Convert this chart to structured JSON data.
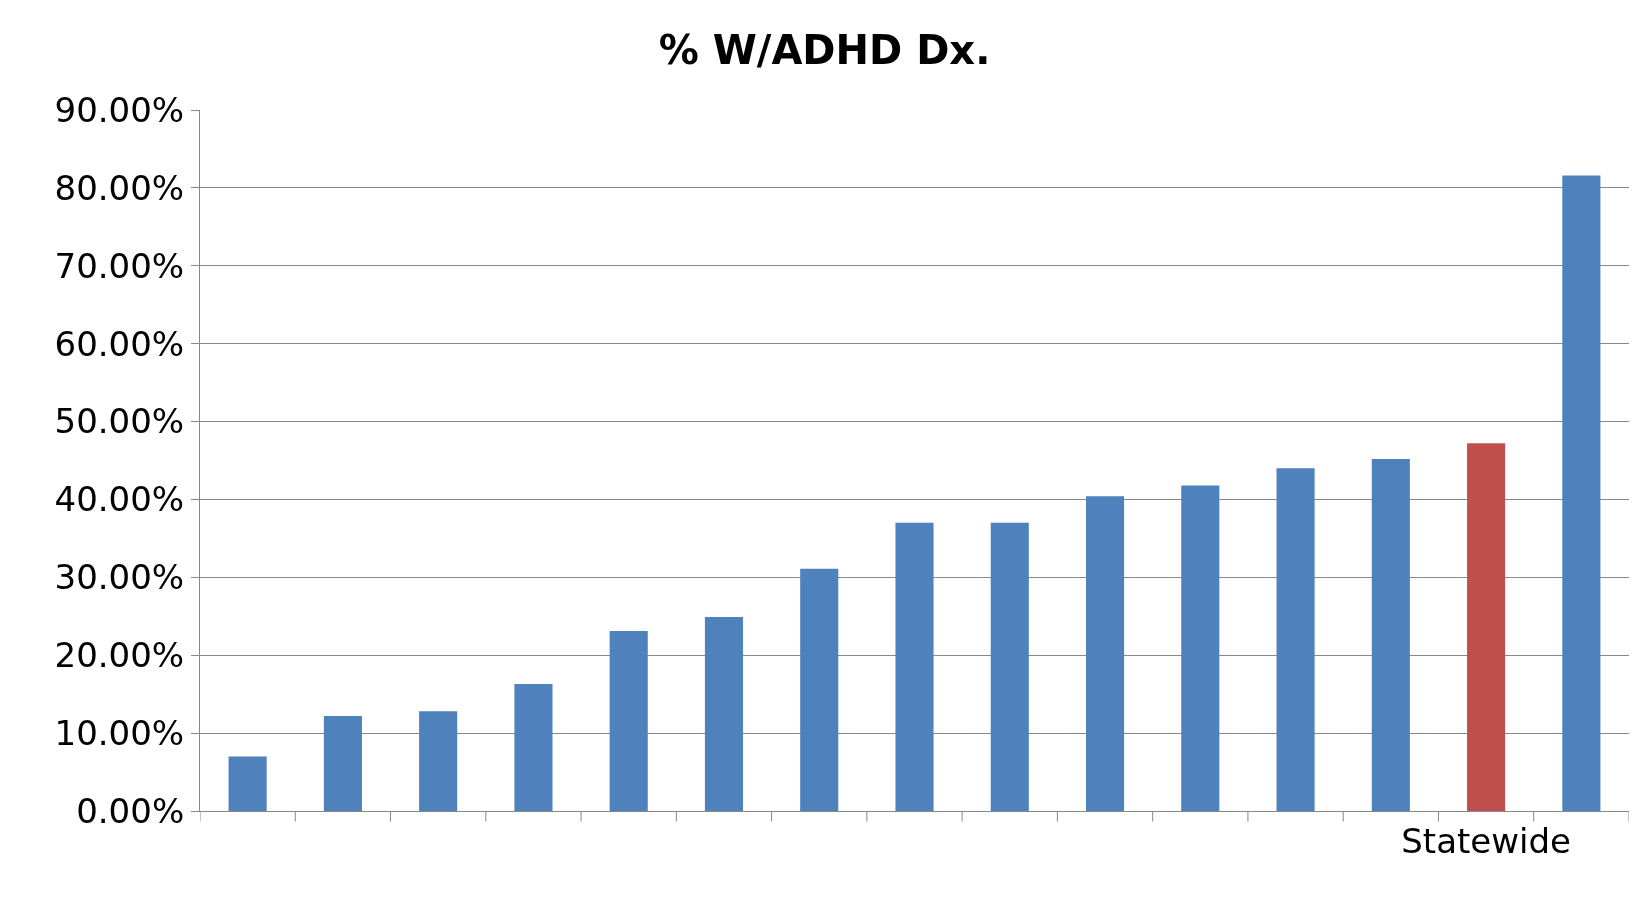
{
  "chart_data": {
    "type": "bar",
    "title": "% W/ADHD Dx.",
    "categories": [
      null,
      null,
      null,
      null,
      null,
      null,
      null,
      null,
      null,
      null,
      null,
      null,
      null,
      "Statewide",
      null
    ],
    "values": [
      7.0,
      12.2,
      12.8,
      16.3,
      23.1,
      24.9,
      31.1,
      37.0,
      37.0,
      40.4,
      41.8,
      44.0,
      45.2,
      47.2,
      81.6
    ],
    "colors": [
      "#4f81bd",
      "#4f81bd",
      "#4f81bd",
      "#4f81bd",
      "#4f81bd",
      "#4f81bd",
      "#4f81bd",
      "#4f81bd",
      "#4f81bd",
      "#4f81bd",
      "#4f81bd",
      "#4f81bd",
      "#4f81bd",
      "#c0504d",
      "#4f81bd"
    ],
    "ylim": [
      0,
      90
    ],
    "yticks": [
      {
        "value": 0,
        "label": "0.00%"
      },
      {
        "value": 10,
        "label": "10.00%"
      },
      {
        "value": 20,
        "label": "20.00%"
      },
      {
        "value": 30,
        "label": "30.00%"
      },
      {
        "value": 40,
        "label": "40.00%"
      },
      {
        "value": 50,
        "label": "50.00%"
      },
      {
        "value": 60,
        "label": "60.00%"
      },
      {
        "value": 70,
        "label": "70.00%"
      },
      {
        "value": 80,
        "label": "80.00%"
      },
      {
        "value": 90,
        "label": "90.00%"
      }
    ],
    "grid": "y"
  }
}
